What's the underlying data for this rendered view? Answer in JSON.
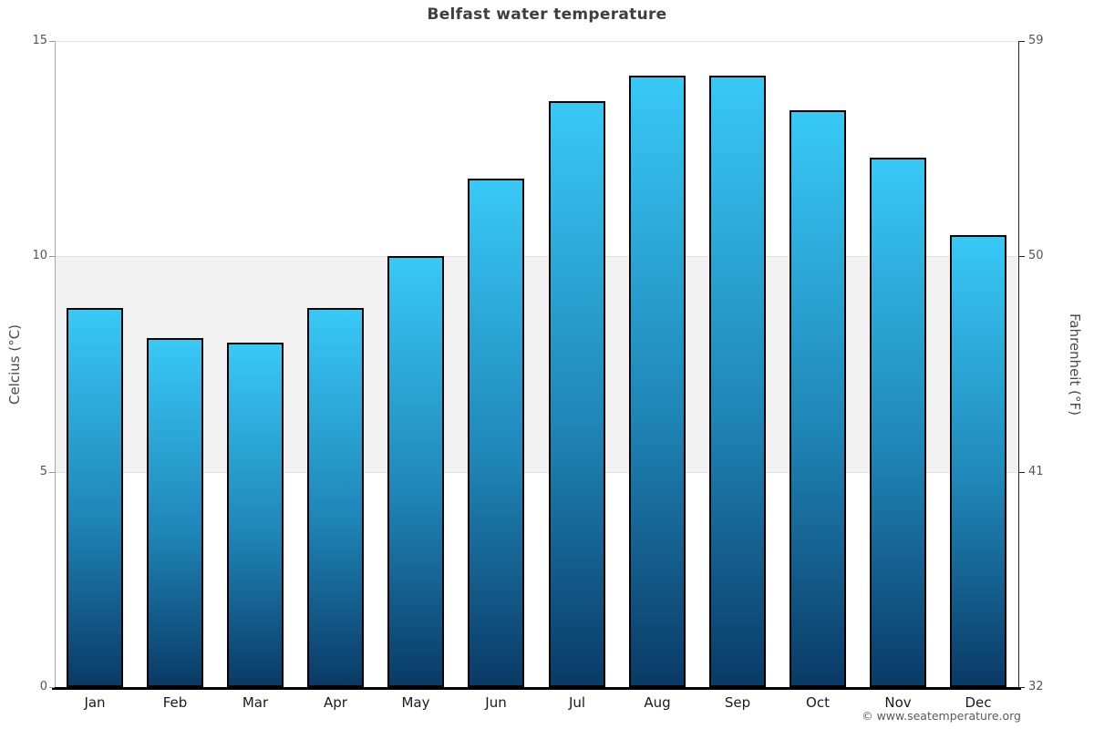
{
  "title": "Belfast water temperature",
  "axes": {
    "left_label": "Celcius (°C)",
    "right_label": "Fahrenheit (°F)",
    "left_ticks": [
      "0",
      "5",
      "10",
      "15"
    ],
    "right_ticks": [
      "32",
      "41",
      "50",
      "59"
    ]
  },
  "footer": {
    "copyright": "© www.seatemperature.org"
  },
  "colors": {
    "bar_top": "#38c9f7",
    "bar_bottom": "#0a3a66",
    "bar_border": "#000000",
    "band": "#f2f2f2",
    "gridline": "#e2e2e2",
    "title_text": "#3f3f3f",
    "tick_text": "#555555",
    "month_text": "#1a1a1a"
  },
  "chart_data": {
    "type": "bar",
    "title": "Belfast water temperature",
    "categories": [
      "Jan",
      "Feb",
      "Mar",
      "Apr",
      "May",
      "Jun",
      "Jul",
      "Aug",
      "Sep",
      "Oct",
      "Nov",
      "Dec"
    ],
    "values": [
      8.8,
      8.1,
      8.0,
      8.8,
      10.0,
      11.8,
      13.6,
      14.2,
      14.2,
      13.4,
      12.3,
      10.5
    ],
    "xlabel": "",
    "ylabel": "Celcius (°C)",
    "ylabel_secondary": "Fahrenheit (°F)",
    "ylim": [
      0,
      15
    ],
    "yticks_celsius": [
      0,
      5,
      10,
      15
    ],
    "yticks_fahrenheit": [
      32,
      41,
      50,
      59
    ],
    "shaded_band_celsius": [
      5,
      10
    ],
    "grid": "horizontal",
    "legend": "none"
  }
}
